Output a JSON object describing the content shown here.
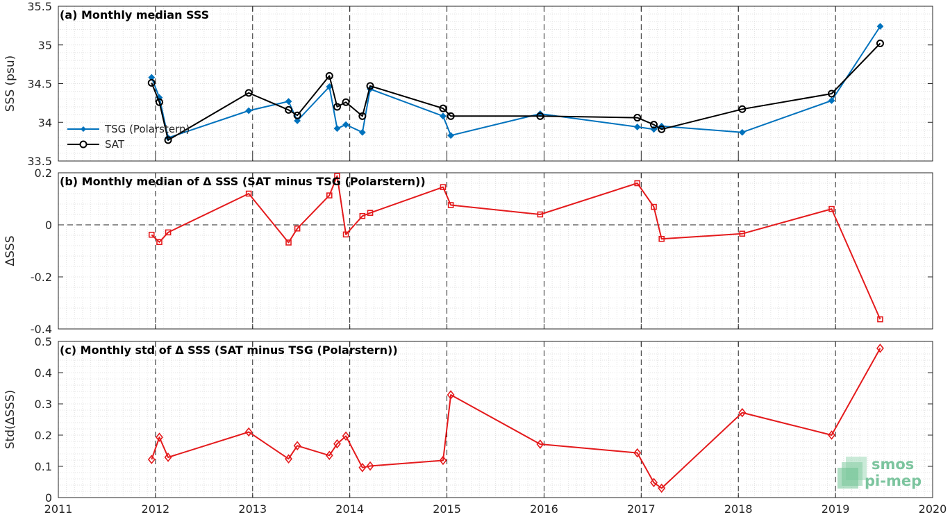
{
  "chart_data": [
    {
      "type": "line",
      "title": "(a) Monthly median SSS",
      "ylabel": "SSS (psu)",
      "ylim": [
        33.5,
        35.5
      ],
      "yticks": [
        "33.5",
        "34",
        "34.5",
        "35",
        "35.5"
      ],
      "xlim": [
        2011,
        2020
      ],
      "grid": true,
      "legend_position": "left",
      "series": [
        {
          "name": "TSG (Polarstern)",
          "color": "#0072BD",
          "marker": "dot",
          "x": [
            2011.96,
            2012.04,
            2012.13,
            2012.96,
            2013.37,
            2013.46,
            2013.79,
            2013.87,
            2013.96,
            2014.13,
            2014.21,
            2014.96,
            2015.04,
            2015.96,
            2016.96,
            2017.13,
            2017.21,
            2018.04,
            2018.96,
            2019.46
          ],
          "y": [
            34.58,
            34.32,
            33.8,
            34.15,
            34.27,
            34.02,
            34.46,
            33.92,
            33.97,
            33.87,
            34.43,
            34.08,
            33.83,
            34.11,
            33.94,
            33.91,
            33.95,
            33.87,
            34.28,
            35.24
          ]
        },
        {
          "name": "SAT",
          "color": "#000000",
          "marker": "circle",
          "x": [
            2011.96,
            2012.04,
            2012.13,
            2012.96,
            2013.37,
            2013.46,
            2013.79,
            2013.87,
            2013.96,
            2014.13,
            2014.21,
            2014.96,
            2015.04,
            2015.96,
            2016.96,
            2017.13,
            2017.21,
            2018.04,
            2018.96,
            2019.46
          ],
          "y": [
            34.51,
            34.26,
            33.77,
            34.38,
            34.16,
            34.09,
            34.6,
            34.2,
            34.26,
            34.08,
            34.47,
            34.18,
            34.08,
            34.08,
            34.06,
            33.97,
            33.91,
            34.17,
            34.37,
            35.02
          ]
        }
      ]
    },
    {
      "type": "line",
      "title": "(b) Monthly median of Δ SSS (SAT minus TSG (Polarstern))",
      "ylabel": "ΔSSS",
      "ylim": [
        -0.4,
        0.2
      ],
      "yticks": [
        "-0.4",
        "-0.2",
        "0",
        "0.2"
      ],
      "xlim": [
        2011,
        2020
      ],
      "grid": true,
      "zero_line": true,
      "series": [
        {
          "color": "#E41A1C",
          "marker": "square",
          "x": [
            2011.96,
            2012.04,
            2012.13,
            2012.96,
            2013.37,
            2013.46,
            2013.79,
            2013.87,
            2013.96,
            2014.13,
            2014.21,
            2014.96,
            2015.04,
            2015.96,
            2016.96,
            2017.13,
            2017.21,
            2018.04,
            2018.96,
            2019.46
          ],
          "y": [
            -0.038,
            -0.066,
            -0.029,
            0.12,
            -0.068,
            -0.014,
            0.113,
            0.188,
            -0.037,
            0.034,
            0.046,
            0.145,
            0.076,
            0.04,
            0.16,
            0.069,
            -0.054,
            -0.034,
            0.061,
            -0.363
          ]
        }
      ]
    },
    {
      "type": "line",
      "title": "(c) Monthly std of Δ SSS (SAT minus TSG (Polarstern))",
      "ylabel": "Std(ΔSSS)",
      "ylim": [
        0,
        0.5
      ],
      "yticks": [
        "0",
        "0.1",
        "0.2",
        "0.3",
        "0.4",
        "0.5"
      ],
      "xlim": [
        2011,
        2020
      ],
      "xticks": [
        "2011",
        "2012",
        "2013",
        "2014",
        "2015",
        "2016",
        "2017",
        "2018",
        "2019",
        "2020"
      ],
      "grid": true,
      "series": [
        {
          "color": "#E41A1C",
          "marker": "diamond",
          "x": [
            2011.96,
            2012.04,
            2012.13,
            2012.96,
            2013.37,
            2013.46,
            2013.79,
            2013.87,
            2013.96,
            2014.13,
            2014.21,
            2014.96,
            2015.04,
            2015.96,
            2016.96,
            2017.13,
            2017.21,
            2018.04,
            2018.96,
            2019.46
          ],
          "y": [
            0.122,
            0.193,
            0.129,
            0.21,
            0.124,
            0.166,
            0.135,
            0.172,
            0.197,
            0.096,
            0.101,
            0.119,
            0.329,
            0.171,
            0.143,
            0.048,
            0.03,
            0.272,
            0.2,
            0.478
          ]
        }
      ]
    }
  ],
  "logo": {
    "line1": "smos",
    "line2": "pi-mep"
  }
}
